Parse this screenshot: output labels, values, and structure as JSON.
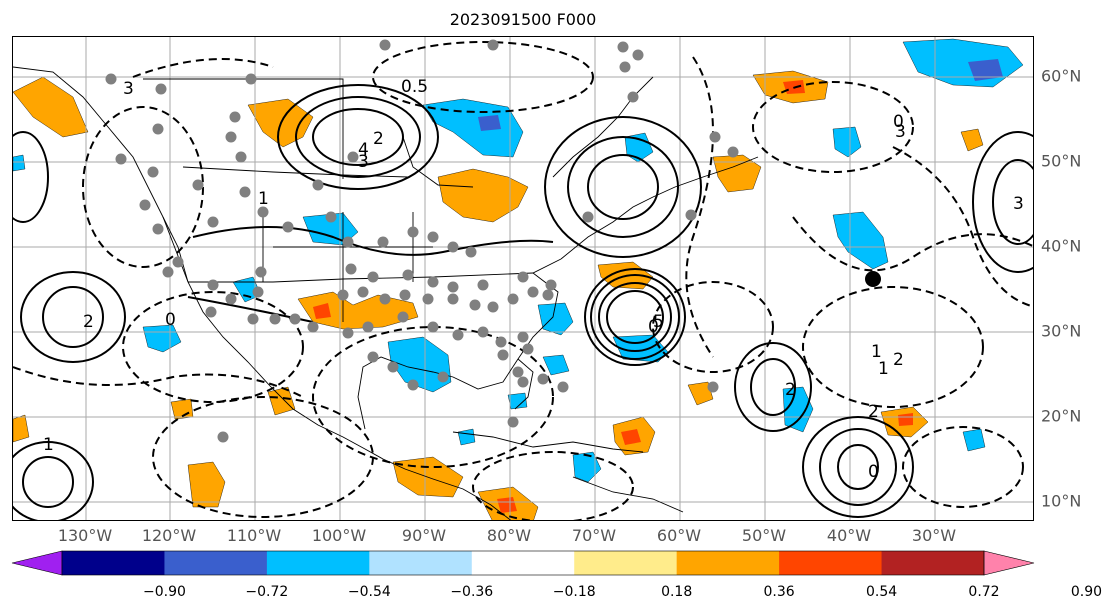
{
  "title": "2023091500 F000",
  "lon_ticks": [
    "130°W",
    "120°W",
    "110°W",
    "100°W",
    "90°W",
    "80°W",
    "70°W",
    "60°W",
    "50°W",
    "40°W",
    "30°W"
  ],
  "lat_ticks": [
    "60°N",
    "50°N",
    "40°N",
    "30°N",
    "20°N",
    "10°N"
  ],
  "colorbar": {
    "colors": [
      "#a020f0",
      "#00008b",
      "#3a5fcd",
      "#00bfff",
      "#b0e2ff",
      "#ffffff",
      "#ffec8b",
      "#ffa500",
      "#ff4500",
      "#b22222",
      "#ff82ab"
    ],
    "ticks": [
      "−0.90",
      "−0.72",
      "−0.54",
      "−0.36",
      "−0.18",
      "0.18",
      "0.36",
      "0.54",
      "0.72",
      "0.90"
    ]
  },
  "contour_labels": [
    "0.5",
    "3",
    "2",
    "4",
    "3",
    "1",
    "3",
    "2",
    "1",
    "0",
    "2",
    "0",
    "5",
    "2",
    "1",
    "0",
    "2",
    "3",
    "0",
    "1"
  ],
  "style": {
    "positive_fill": "#ffa500",
    "negative_fill": "#00bfff",
    "storm_fill": "#ff4500",
    "gridline": "#aaaaaa",
    "station": "#808080"
  }
}
